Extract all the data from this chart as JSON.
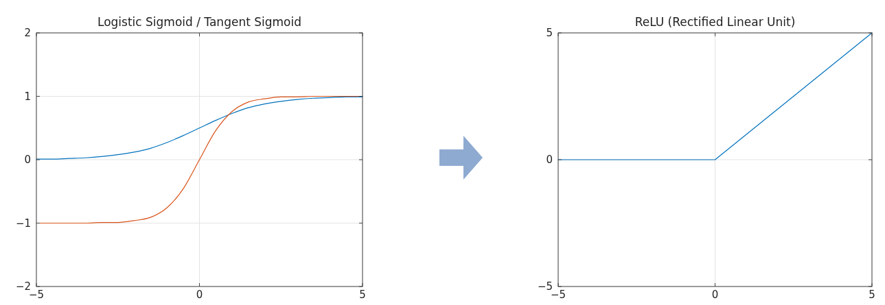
{
  "chart_data": [
    {
      "type": "line",
      "title": "Logistic Sigmoid / Tangent Sigmoid",
      "x": [
        -5,
        -4.5,
        -4,
        -3.5,
        -3,
        -2.5,
        -2,
        -1.5,
        -1,
        -0.5,
        0,
        0.5,
        1,
        1.5,
        2,
        2.5,
        3,
        3.5,
        4,
        4.5,
        5
      ],
      "series": [
        {
          "color": "#0072bd",
          "values": [
            0.01,
            0.01,
            0.02,
            0.03,
            0.05,
            0.08,
            0.12,
            0.18,
            0.27,
            0.38,
            0.5,
            0.62,
            0.73,
            0.82,
            0.88,
            0.92,
            0.95,
            0.97,
            0.98,
            0.99,
            0.99
          ]
        },
        {
          "color": "#d95319",
          "values": [
            -1,
            -1,
            -1,
            -1,
            -0.99,
            -0.99,
            -0.96,
            -0.91,
            -0.76,
            -0.46,
            0,
            0.46,
            0.76,
            0.91,
            0.96,
            0.99,
            0.99,
            1,
            1,
            1,
            1
          ]
        }
      ],
      "xlim": [
        -5,
        5
      ],
      "xticks": [
        -5,
        0,
        5
      ],
      "ylim": [
        -2,
        2
      ],
      "yticks": [
        -2,
        -1,
        0,
        1,
        2
      ],
      "grid": true
    },
    {
      "type": "line",
      "title": "ReLU (Rectified Linear Unit)",
      "x": [
        -5,
        0,
        5
      ],
      "series": [
        {
          "color": "#0072bd",
          "values": [
            0,
            0,
            5
          ]
        }
      ],
      "xlim": [
        -5,
        5
      ],
      "xticks": [
        -5,
        0,
        5
      ],
      "ylim": [
        -5,
        5
      ],
      "yticks": [
        -5,
        0,
        5
      ],
      "grid": true
    }
  ]
}
